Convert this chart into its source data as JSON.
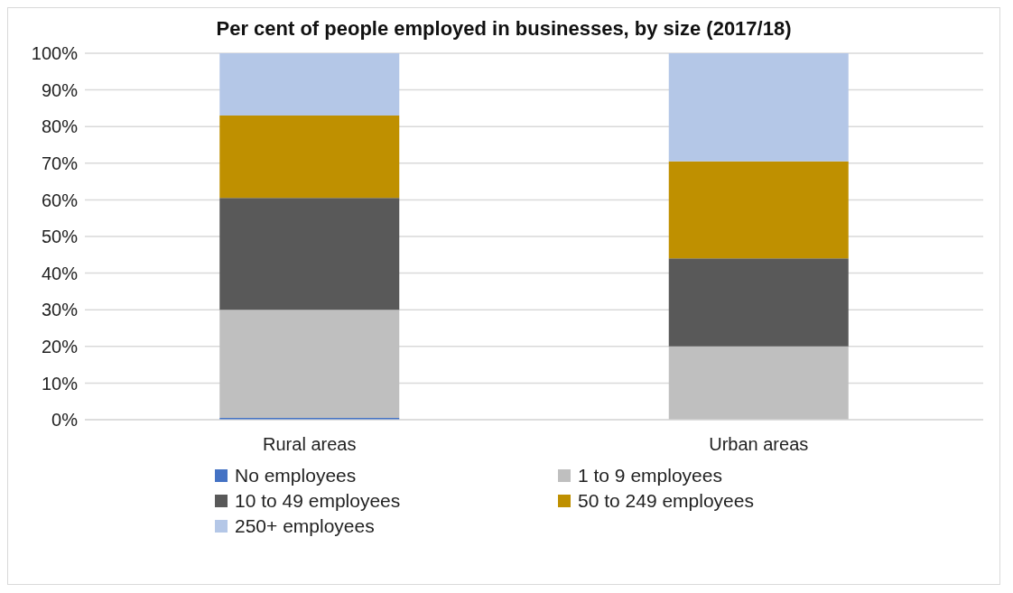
{
  "chart_data": {
    "type": "bar",
    "title": "Per cent of people employed in businesses, by size (2017/18)",
    "categories": [
      "Rural areas",
      "Urban areas"
    ],
    "stacked": true,
    "series": [
      {
        "name": "No employees",
        "color": "#4472c4",
        "values": [
          0.5,
          0
        ]
      },
      {
        "name": "1 to 9 employees",
        "color": "#bfbfbf",
        "values": [
          29.5,
          20
        ]
      },
      {
        "name": "10 to 49 employees",
        "color": "#595959",
        "values": [
          30.5,
          24
        ]
      },
      {
        "name": "50 to 249 employees",
        "color": "#bf9000",
        "values": [
          22.5,
          26.5
        ]
      },
      {
        "name": "250+ employees",
        "color": "#b4c7e7",
        "values": [
          17,
          29.5
        ]
      }
    ],
    "ylim": [
      0,
      100
    ],
    "yticks": [
      {
        "value": 0,
        "label": "0%"
      },
      {
        "value": 10,
        "label": "10%"
      },
      {
        "value": 20,
        "label": "20%"
      },
      {
        "value": 30,
        "label": "30%"
      },
      {
        "value": 40,
        "label": "40%"
      },
      {
        "value": 50,
        "label": "50%"
      },
      {
        "value": 60,
        "label": "60%"
      },
      {
        "value": 70,
        "label": "70%"
      },
      {
        "value": 80,
        "label": "80%"
      },
      {
        "value": 90,
        "label": "90%"
      },
      {
        "value": 100,
        "label": "100%"
      }
    ],
    "grid": "y",
    "legend": "bottom"
  }
}
